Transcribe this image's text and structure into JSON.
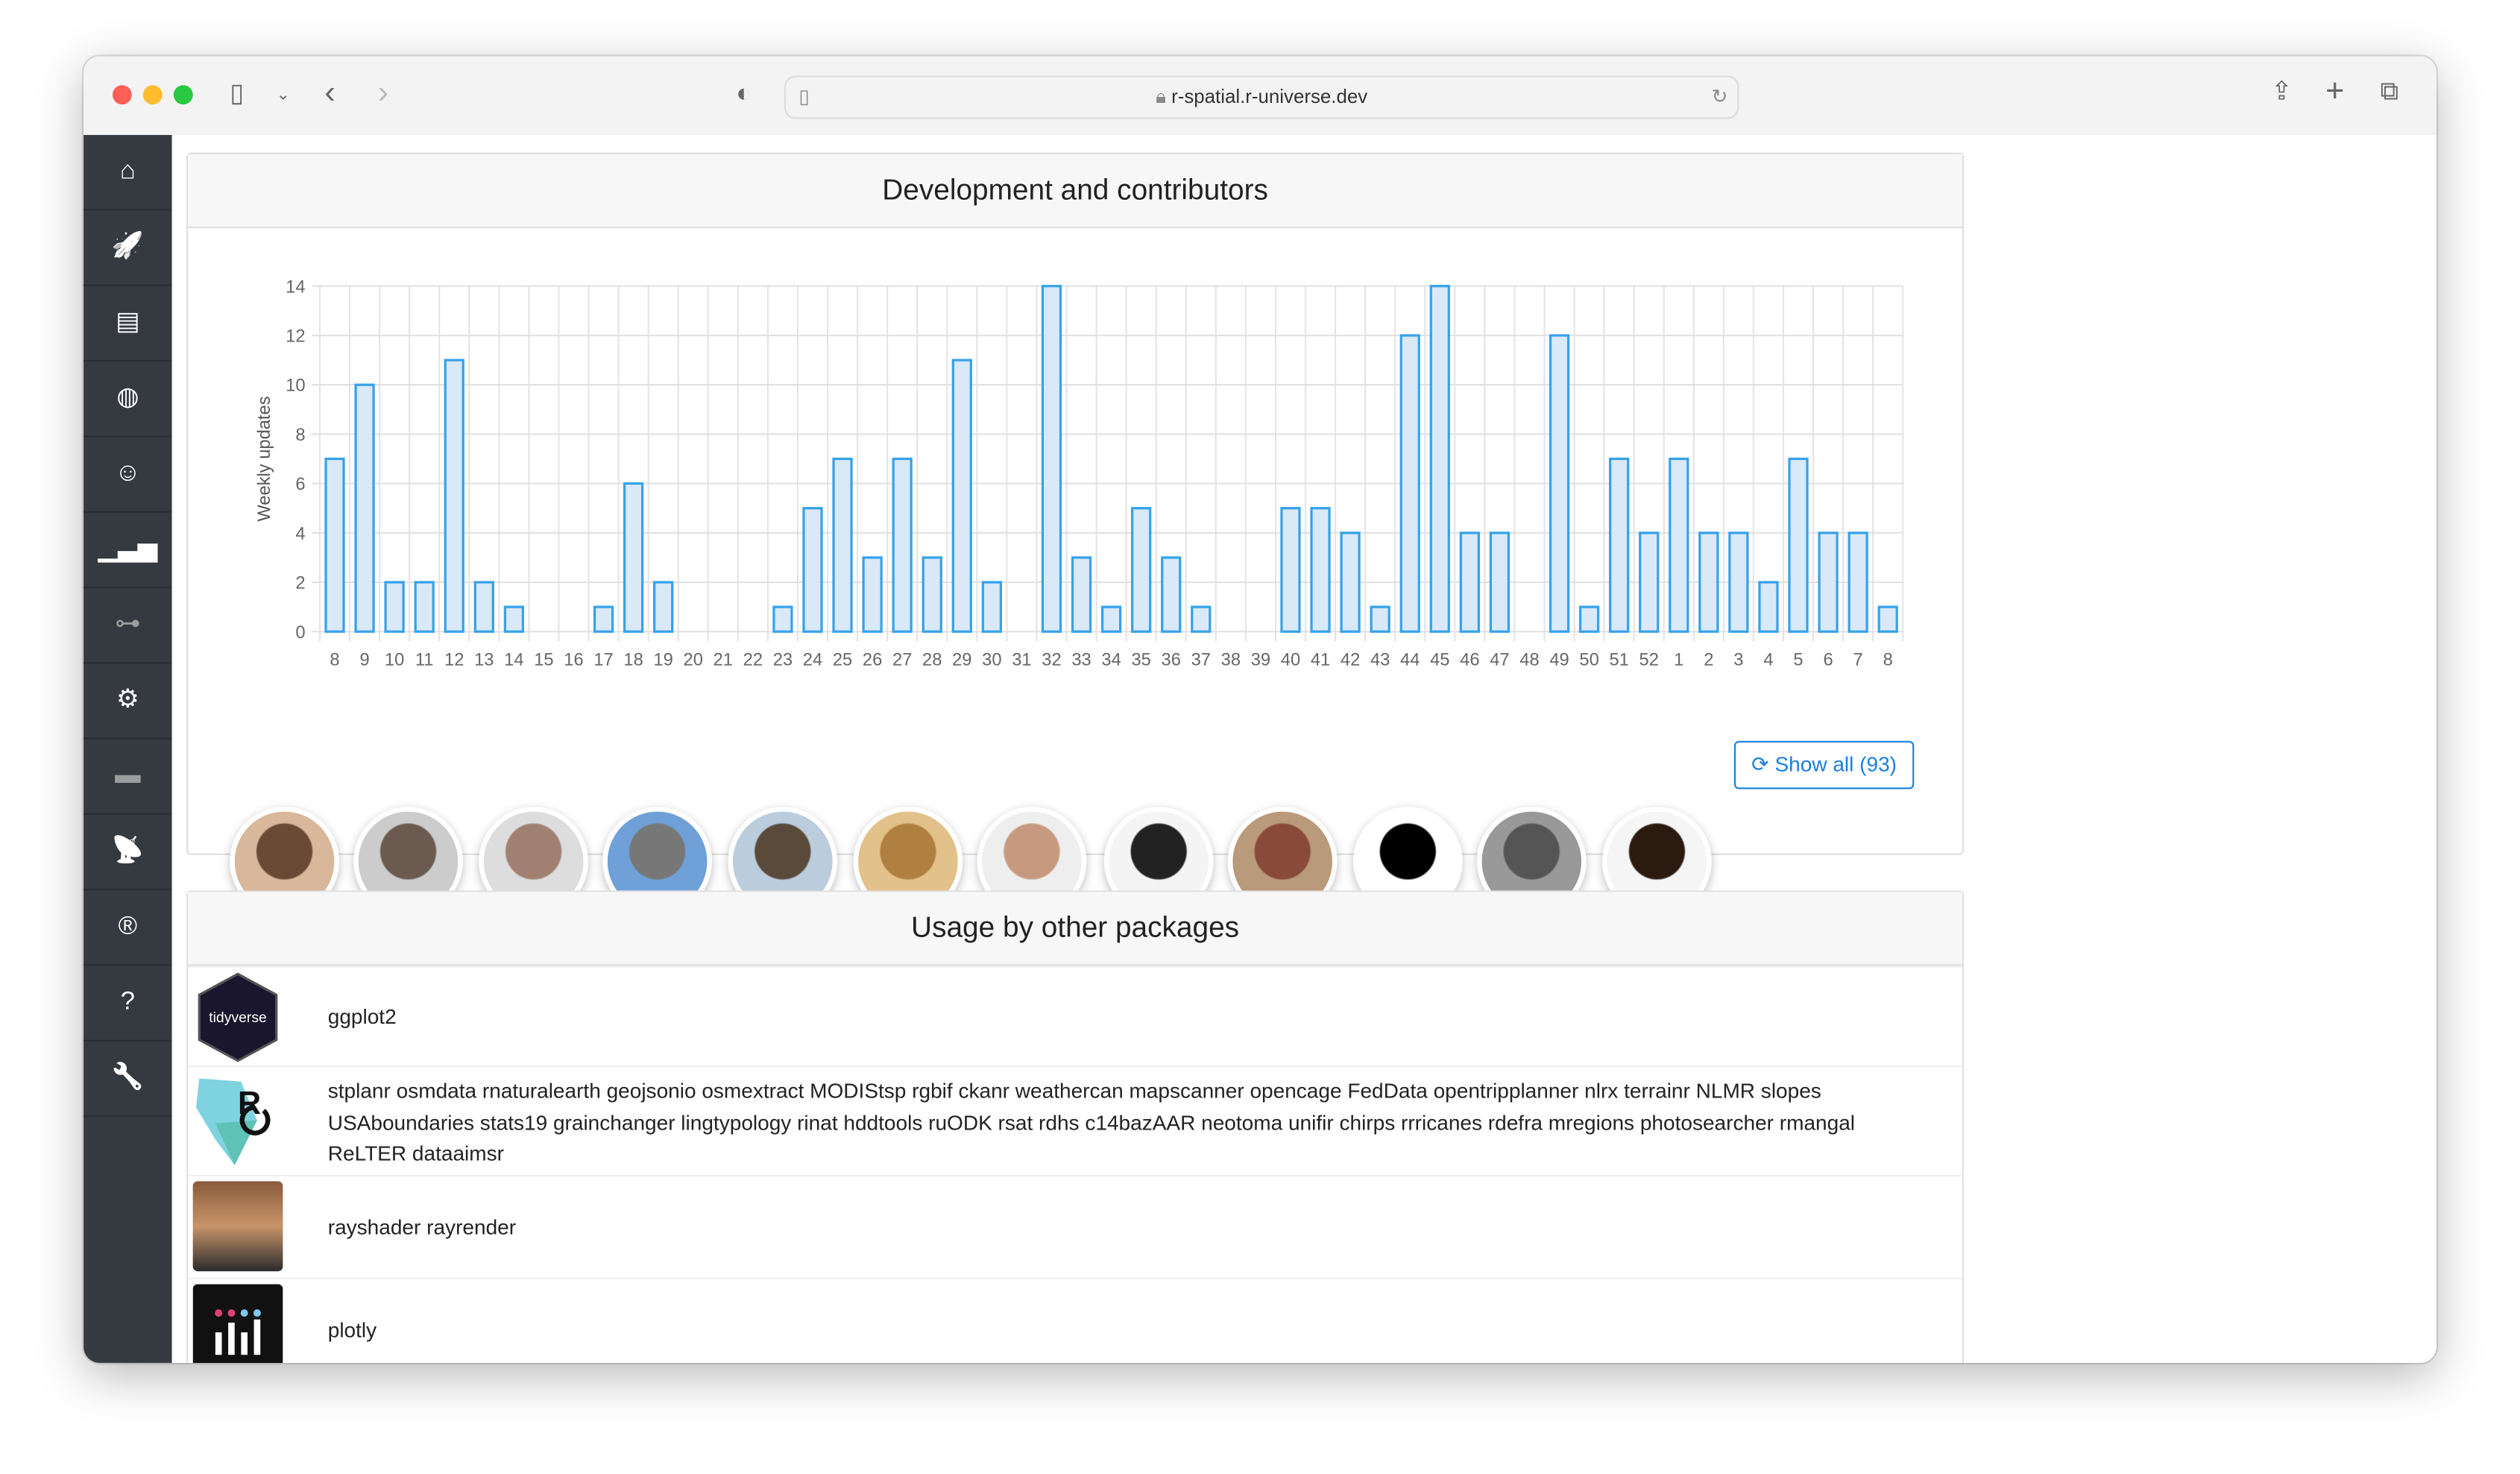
{
  "browser": {
    "url": "r-spatial.r-universe.dev",
    "traffic_colors": [
      "#ff5f57",
      "#febc2e",
      "#28c840"
    ]
  },
  "sidebar": {
    "items": [
      {
        "icon": "home-icon",
        "glyph": "⌂"
      },
      {
        "icon": "rocket-icon",
        "glyph": "🚀"
      },
      {
        "icon": "book-icon",
        "glyph": "▤"
      },
      {
        "icon": "globe-icon",
        "glyph": "◍"
      },
      {
        "icon": "user-astronaut-icon",
        "glyph": "☺"
      },
      {
        "icon": "bar-chart-icon",
        "glyph": "▁▃▅"
      },
      {
        "icon": "sitemap-icon",
        "glyph": "⊶",
        "dim": true
      },
      {
        "icon": "gear-icon",
        "glyph": "⚙"
      },
      {
        "icon": "calendar-icon",
        "glyph": "▬",
        "dim": true
      },
      {
        "icon": "satellite-dish-icon",
        "glyph": "📡"
      },
      {
        "icon": "r-project-icon",
        "glyph": "®"
      },
      {
        "icon": "question-icon",
        "glyph": "?"
      },
      {
        "icon": "wrench-icon",
        "glyph": "🔧"
      }
    ]
  },
  "dev": {
    "title": "Development and contributors",
    "show_all": "Show all (93)",
    "accent": "#1a7fe0",
    "contributors": 12
  },
  "chart_data": {
    "type": "bar",
    "title": "",
    "xlabel": "",
    "ylabel": "Weekly updates",
    "ylim": [
      0,
      14
    ],
    "yticks": [
      0,
      2,
      4,
      6,
      8,
      10,
      12,
      14
    ],
    "grid": true,
    "bar_fill": "#d9e9f8",
    "bar_stroke": "#36a2eb",
    "categories": [
      "8",
      "9",
      "10",
      "11",
      "12",
      "13",
      "14",
      "15",
      "16",
      "17",
      "18",
      "19",
      "20",
      "21",
      "22",
      "23",
      "24",
      "25",
      "26",
      "27",
      "28",
      "29",
      "30",
      "31",
      "32",
      "33",
      "34",
      "35",
      "36",
      "37",
      "38",
      "39",
      "40",
      "41",
      "42",
      "43",
      "44",
      "45",
      "46",
      "47",
      "48",
      "49",
      "50",
      "51",
      "52",
      "1",
      "2",
      "3",
      "4",
      "5",
      "6",
      "7",
      "8"
    ],
    "values": [
      7,
      10,
      2,
      2,
      11,
      2,
      1,
      0,
      0,
      1,
      6,
      2,
      0,
      0,
      0,
      1,
      5,
      7,
      3,
      7,
      3,
      11,
      2,
      0,
      14,
      3,
      1,
      5,
      3,
      1,
      0,
      0,
      5,
      5,
      4,
      1,
      12,
      14,
      4,
      4,
      0,
      12,
      1,
      7,
      4,
      7,
      4,
      4,
      2,
      7,
      4,
      4,
      1
    ]
  },
  "usage": {
    "title": "Usage by other packages",
    "rows": [
      {
        "logo": "tidyverse",
        "text": "ggplot2"
      },
      {
        "logo": "ropensci",
        "text": "stplanr osmdata rnaturalearth geojsonio osmextract MODIStsp rgbif ckanr weathercan mapscanner opencage FedData opentripplanner nlrx terrainr NLMR slopes USAboundaries stats19 grainchanger lingtypology rinat hddtools ruODK rsat rdhs c14bazAAR neotoma unifir chirps rrricanes rdefra mregions photosearcher rmangal ReLTER dataaimsr"
      },
      {
        "logo": "avatar",
        "text": "rayshader rayrender"
      },
      {
        "logo": "plotly",
        "text": "plotly"
      }
    ]
  }
}
